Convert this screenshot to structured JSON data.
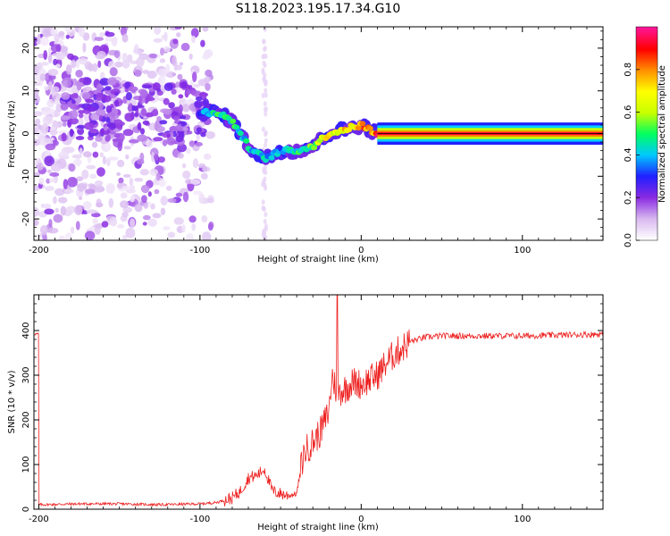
{
  "title": "S118.2023.195.17.34.G10",
  "chart_data": [
    {
      "type": "heatmap",
      "title": "S118.2023.195.17.34.G10",
      "xlabel": "Height of straight line (km)",
      "ylabel": "Frequency (Hz)",
      "xlim": [
        -203,
        150
      ],
      "ylim": [
        -25,
        25
      ],
      "x_ticks": [
        -200,
        -100,
        0,
        100
      ],
      "y_ticks": [
        -20,
        -10,
        0,
        10,
        20
      ],
      "grid": false,
      "colorbar": {
        "label": "Normalized spectral amplitude",
        "range": [
          0,
          1
        ],
        "ticks": [
          0.0,
          0.2,
          0.4,
          0.6,
          0.8
        ],
        "colormap": [
          "#ffffff",
          "#d8b8f0",
          "#8a2be2",
          "#2020ff",
          "#00c8ff",
          "#00ff60",
          "#c8ff00",
          "#ffff00",
          "#ff9000",
          "#ff0000",
          "#ff1493"
        ]
      },
      "ridge": {
        "description_points": [
          {
            "x": -100,
            "y": 5,
            "amp": 0.35
          },
          {
            "x": -90,
            "y": 5,
            "amp": 0.5
          },
          {
            "x": -80,
            "y": 3,
            "amp": 0.5
          },
          {
            "x": -70,
            "y": -3,
            "amp": 0.45
          },
          {
            "x": -60,
            "y": -6,
            "amp": 0.45
          },
          {
            "x": -50,
            "y": -4,
            "amp": 0.4
          },
          {
            "x": -40,
            "y": -4,
            "amp": 0.5
          },
          {
            "x": -30,
            "y": -3,
            "amp": 0.6
          },
          {
            "x": -20,
            "y": 0,
            "amp": 0.7
          },
          {
            "x": -10,
            "y": 1,
            "amp": 0.8
          },
          {
            "x": 0,
            "y": 2,
            "amp": 0.85
          },
          {
            "x": 10,
            "y": 0,
            "amp": 0.95
          },
          {
            "x": 150,
            "y": 0,
            "amp": 0.95
          }
        ]
      }
    },
    {
      "type": "line",
      "xlabel": "Height of straight line (km)",
      "ylabel": "SNR (10 * v/v)",
      "xlim": [
        -203,
        150
      ],
      "ylim": [
        0,
        480
      ],
      "x_ticks": [
        -200,
        -100,
        0,
        100
      ],
      "y_ticks": [
        0,
        100,
        200,
        300,
        400
      ],
      "grid": false,
      "color": "#ee2020",
      "series": [
        {
          "x": [
            -200,
            -175,
            -150,
            -125,
            -100,
            -90,
            -80,
            -75,
            -70,
            -65,
            -60,
            -55,
            -50,
            -45,
            -40,
            -37,
            -35,
            -30,
            -25,
            -20,
            -18,
            -15,
            -10,
            -5,
            0,
            5,
            10,
            15,
            20,
            25,
            30,
            40,
            50,
            75,
            100,
            125,
            150
          ],
          "values": [
            10,
            12,
            12,
            10,
            12,
            15,
            25,
            40,
            70,
            75,
            90,
            40,
            35,
            30,
            35,
            100,
            130,
            150,
            175,
            220,
            300,
            260,
            270,
            285,
            280,
            290,
            300,
            325,
            345,
            360,
            375,
            385,
            388,
            388,
            388,
            390,
            392
          ]
        }
      ],
      "spike": {
        "x": -15,
        "y": 480
      }
    }
  ]
}
